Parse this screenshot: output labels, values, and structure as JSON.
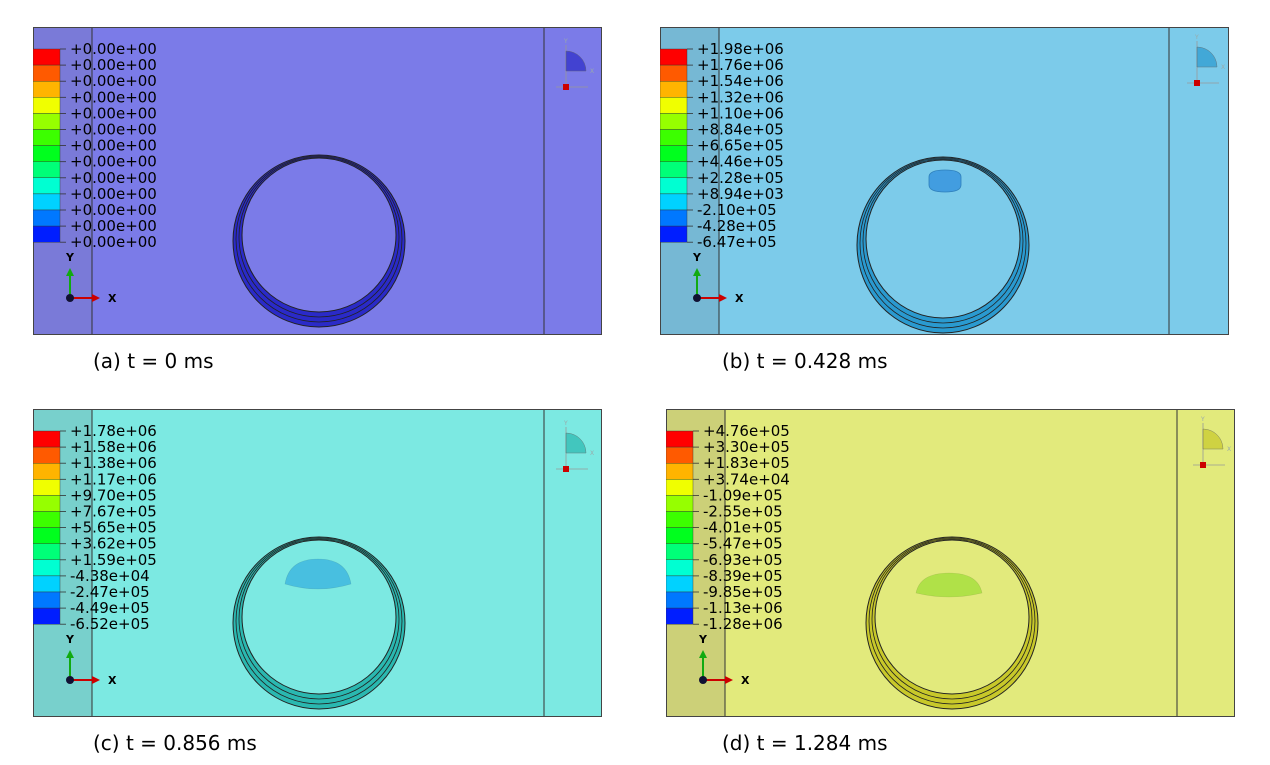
{
  "palette": [
    "#ff0000",
    "#ff5a00",
    "#ffb400",
    "#f0ff00",
    "#96ff00",
    "#3cff00",
    "#00ff1e",
    "#00ff78",
    "#00ffd2",
    "#00d2ff",
    "#0078ff",
    "#001eff"
  ],
  "axis": {
    "x_label": "X",
    "y_label": "Y"
  },
  "triad": {
    "x_label": "X",
    "y_label": "Y"
  },
  "panels": [
    {
      "id": "a",
      "caption": "(a) t = 0 ms",
      "background": "#7b7be8",
      "strip": "#7a7ad8",
      "ring_color": "#2a2ac8",
      "bubble": null,
      "legend_values": [
        "+0.00e+00",
        "+0.00e+00",
        "+0.00e+00",
        "+0.00e+00",
        "+0.00e+00",
        "+0.00e+00",
        "+0.00e+00",
        "+0.00e+00",
        "+0.00e+00",
        "+0.00e+00",
        "+0.00e+00",
        "+0.00e+00",
        "+0.00e+00"
      ]
    },
    {
      "id": "b",
      "caption": "(b) t = 0.428 ms",
      "background": "#7ccbea",
      "strip": "#76b8d4",
      "ring_color": "#2a9ad0",
      "bubble": "#3f9be0",
      "legend_values": [
        "+1.98e+06",
        "+1.76e+06",
        "+1.54e+06",
        "+1.32e+06",
        "+1.10e+06",
        "+8.84e+05",
        "+6.65e+05",
        "+4.46e+05",
        "+2.28e+05",
        "+8.94e+03",
        "-2.10e+05",
        "-4.28e+05",
        "-6.47e+05"
      ]
    },
    {
      "id": "c",
      "caption": "(c) t = 0.856 ms",
      "background": "#7ce9e2",
      "strip": "#78d0cc",
      "ring_color": "#2ab8b0",
      "bubble": "#3fb8e0",
      "legend_values": [
        "+1.78e+06",
        "+1.58e+06",
        "+1.38e+06",
        "+1.17e+06",
        "+9.70e+05",
        "+7.67e+05",
        "+5.65e+05",
        "+3.62e+05",
        "+1.59e+05",
        "-4.38e+04",
        "-2.47e+05",
        "-4.49e+05",
        "-6.52e+05"
      ]
    },
    {
      "id": "d",
      "caption": "(d) t = 1.284 ms",
      "background": "#e2ea7c",
      "strip": "#ccd078",
      "ring_color": "#c8c82a",
      "bubble": "#a8e040",
      "legend_values": [
        "+4.76e+05",
        "+3.30e+05",
        "+1.83e+05",
        "+3.74e+04",
        "-1.09e+05",
        "-2.55e+05",
        "-4.01e+05",
        "-5.47e+05",
        "-6.93e+05",
        "-8.39e+05",
        "-9.85e+05",
        "-1.13e+06",
        "-1.28e+06"
      ]
    }
  ]
}
